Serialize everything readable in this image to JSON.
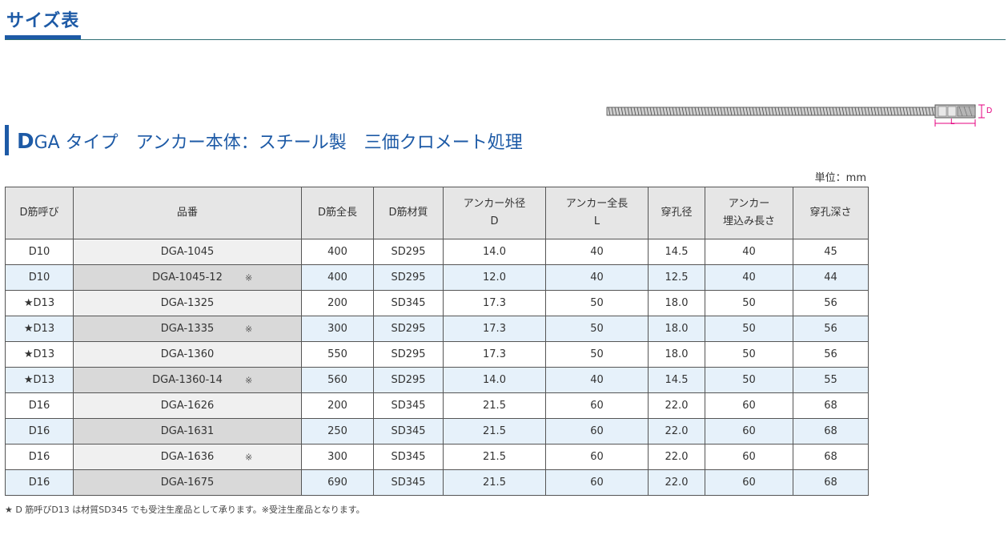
{
  "page": {
    "heading": "サイズ表"
  },
  "section": {
    "title_initial": "D",
    "title_rest": "GA タイプ　アンカー本体：スチール製　三価クロメート処理"
  },
  "diagram": {
    "label_d": "D",
    "label_l": "L",
    "accent_color": "#e4007f"
  },
  "unit": "単位：mm",
  "table": {
    "headers": [
      "D筋呼び",
      "品番",
      "D筋全長",
      "D筋材質",
      [
        "アンカー外径",
        "D"
      ],
      [
        "アンカー全長",
        "L"
      ],
      "穿孔径",
      [
        "アンカー",
        "埋込み長さ"
      ],
      "穿孔深さ"
    ],
    "rows": [
      {
        "call": "D10",
        "part": "DGA-1045",
        "mark": "",
        "length": "400",
        "material": "SD295",
        "outer_d": "14.0",
        "total_l": "40",
        "hole_dia": "14.5",
        "embed": "40",
        "depth": "45"
      },
      {
        "call": "D10",
        "part": "DGA-1045-12",
        "mark": "※",
        "length": "400",
        "material": "SD295",
        "outer_d": "12.0",
        "total_l": "40",
        "hole_dia": "12.5",
        "embed": "40",
        "depth": "44"
      },
      {
        "call": "★D13",
        "part": "DGA-1325",
        "mark": "",
        "length": "200",
        "material": "SD345",
        "outer_d": "17.3",
        "total_l": "50",
        "hole_dia": "18.0",
        "embed": "50",
        "depth": "56"
      },
      {
        "call": "★D13",
        "part": "DGA-1335",
        "mark": "※",
        "length": "300",
        "material": "SD295",
        "outer_d": "17.3",
        "total_l": "50",
        "hole_dia": "18.0",
        "embed": "50",
        "depth": "56"
      },
      {
        "call": "★D13",
        "part": "DGA-1360",
        "mark": "",
        "length": "550",
        "material": "SD295",
        "outer_d": "17.3",
        "total_l": "50",
        "hole_dia": "18.0",
        "embed": "50",
        "depth": "56"
      },
      {
        "call": "★D13",
        "part": "DGA-1360-14",
        "mark": "※",
        "length": "560",
        "material": "SD295",
        "outer_d": "14.0",
        "total_l": "40",
        "hole_dia": "14.5",
        "embed": "50",
        "depth": "55"
      },
      {
        "call": "D16",
        "part": "DGA-1626",
        "mark": "",
        "length": "200",
        "material": "SD345",
        "outer_d": "21.5",
        "total_l": "60",
        "hole_dia": "22.0",
        "embed": "60",
        "depth": "68"
      },
      {
        "call": "D16",
        "part": "DGA-1631",
        "mark": "",
        "length": "250",
        "material": "SD345",
        "outer_d": "21.5",
        "total_l": "60",
        "hole_dia": "22.0",
        "embed": "60",
        "depth": "68"
      },
      {
        "call": "D16",
        "part": "DGA-1636",
        "mark": "※",
        "length": "300",
        "material": "SD345",
        "outer_d": "21.5",
        "total_l": "60",
        "hole_dia": "22.0",
        "embed": "60",
        "depth": "68"
      },
      {
        "call": "D16",
        "part": "DGA-1675",
        "mark": "",
        "length": "690",
        "material": "SD345",
        "outer_d": "21.5",
        "total_l": "60",
        "hole_dia": "22.0",
        "embed": "60",
        "depth": "68"
      }
    ]
  },
  "footnote": "★ D 筋呼びD13 は材質SD345 でも受注生産品として承ります。※受注生産品となります。"
}
